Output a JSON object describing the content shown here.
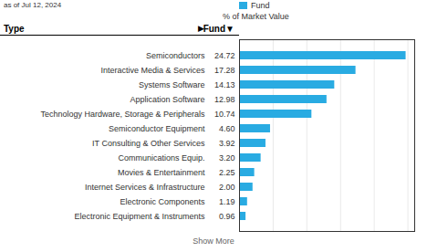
{
  "chart_data": {
    "type": "bar",
    "orientation": "horizontal",
    "title": "% of Market Value",
    "subtitle": "as of Jul 12, 2024",
    "ylabel": "Type",
    "annotations": [
      "▶",
      "Fund▼",
      "Show More"
    ],
    "categories": [
      "Semiconductors",
      "Interactive Media & Services",
      "Systems Software",
      "Application Software",
      "Technology Hardware, Storage & Peripherals",
      "Semiconductor Equipment",
      "IT Consulting & Other Services",
      "Communications Equip.",
      "Movies & Entertainment",
      "Internet Services & Infrastructure",
      "Electronic Components",
      "Electronic Equipment & Instruments"
    ],
    "series": [
      {
        "name": "Fund",
        "color": "#29ABE2",
        "values": [
          24.72,
          17.28,
          14.13,
          12.98,
          10.74,
          4.6,
          3.92,
          3.2,
          2.25,
          2.0,
          1.19,
          0.96
        ],
        "value_labels": [
          "24.72",
          "17.28",
          "14.13",
          "12.98",
          "10.74",
          "4.60",
          "3.92",
          "3.20",
          "2.25",
          "2.00",
          "1.19",
          "0.96"
        ]
      }
    ],
    "data_labels": true,
    "xlim": [
      0,
      26
    ],
    "xticks": [
      5,
      10,
      15,
      20,
      25
    ],
    "grid": true,
    "tick_labels": "y",
    "legend": "top-left"
  }
}
